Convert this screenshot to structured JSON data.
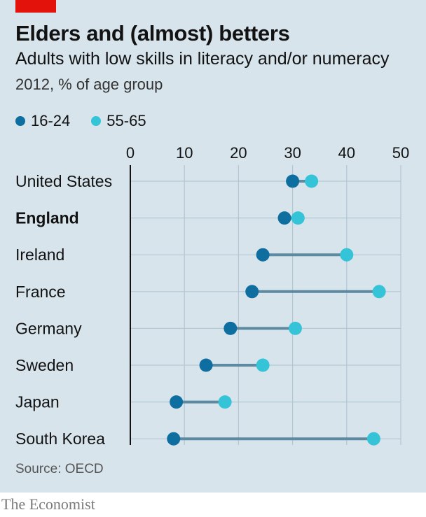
{
  "title": "Elders and (almost) betters",
  "subtitle": "Adults with low skills in literacy and/or numeracy",
  "unit": "2012, % of age group",
  "legend": [
    {
      "label": "16-24",
      "color": "#0f6ea0"
    },
    {
      "label": "55-65",
      "color": "#35c4d7"
    }
  ],
  "source": "Source: OECD",
  "brand": "The Economist",
  "chart_data": {
    "type": "dumbbell",
    "xlim": [
      0,
      50
    ],
    "xticks": [
      0,
      10,
      20,
      30,
      40,
      50
    ],
    "grid": true,
    "legend_position": "top-left",
    "highlight": "England",
    "categories": [
      "United States",
      "England",
      "Ireland",
      "France",
      "Germany",
      "Sweden",
      "Japan",
      "South Korea"
    ],
    "series": [
      {
        "name": "16-24",
        "color": "#0f6ea0",
        "values": [
          30,
          28.5,
          24.5,
          22.5,
          18.5,
          14,
          8.5,
          8
        ]
      },
      {
        "name": "55-65",
        "color": "#35c4d7",
        "values": [
          33.5,
          31,
          40,
          46,
          30.5,
          24.5,
          17.5,
          45
        ]
      }
    ],
    "connector_color": "#5d8aa0"
  }
}
